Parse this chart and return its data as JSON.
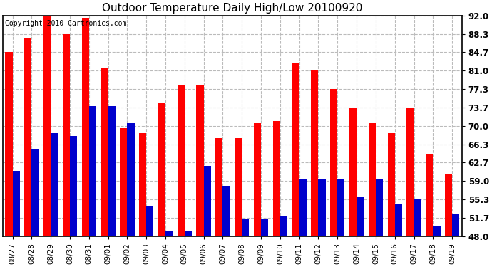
{
  "title": "Outdoor Temperature Daily High/Low 20100920",
  "copyright": "Copyright 2010 Cartronics.com",
  "dates": [
    "08/27",
    "08/28",
    "08/29",
    "08/30",
    "08/31",
    "09/01",
    "09/02",
    "09/03",
    "09/04",
    "09/05",
    "09/06",
    "09/07",
    "09/08",
    "09/09",
    "09/10",
    "09/11",
    "09/12",
    "09/13",
    "09/14",
    "09/15",
    "09/16",
    "09/17",
    "09/18",
    "09/19"
  ],
  "highs": [
    84.7,
    87.5,
    92.0,
    88.3,
    91.5,
    81.5,
    69.5,
    68.5,
    74.5,
    78.0,
    78.0,
    67.5,
    67.5,
    70.5,
    71.0,
    82.5,
    81.0,
    77.3,
    73.7,
    70.5,
    68.5,
    73.7,
    64.5,
    60.5
  ],
  "lows": [
    61.0,
    65.5,
    68.5,
    68.0,
    74.0,
    74.0,
    70.5,
    54.0,
    49.0,
    49.0,
    62.0,
    58.0,
    51.5,
    51.5,
    52.0,
    59.5,
    59.5,
    59.5,
    56.0,
    59.5,
    54.5,
    55.5,
    50.0,
    52.5
  ],
  "high_color": "#ff0000",
  "low_color": "#0000cc",
  "bg_color": "#ffffff",
  "plot_bg_color": "#ffffff",
  "grid_color": "#bbbbbb",
  "yticks": [
    48.0,
    51.7,
    55.3,
    59.0,
    62.7,
    66.3,
    70.0,
    73.7,
    77.3,
    81.0,
    84.7,
    88.3,
    92.0
  ],
  "ymin": 48.0,
  "ymax": 92.0,
  "title_fontsize": 11,
  "copyright_fontsize": 7,
  "bar_width": 0.38
}
